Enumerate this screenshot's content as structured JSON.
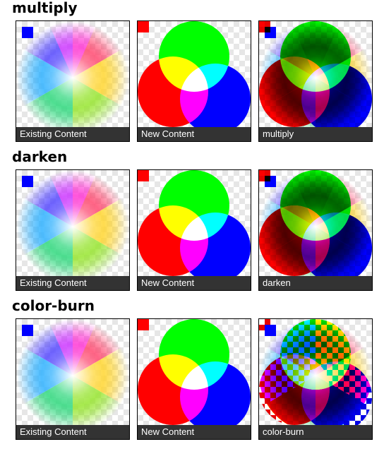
{
  "sections": [
    {
      "mode": "multiply",
      "title": "multiply",
      "captions": [
        "Existing Content",
        "New Content",
        "multiply"
      ]
    },
    {
      "mode": "darken",
      "title": "darken",
      "captions": [
        "Existing Content",
        "New Content",
        "darken"
      ]
    },
    {
      "mode": "color-burn",
      "title": "color-burn",
      "captions": [
        "Existing Content",
        "New Content",
        "color-burn"
      ]
    }
  ],
  "colors": {
    "caption_bg": "#333333",
    "existing_square": "#0000ff",
    "new_square": "#ff0000",
    "circle_red": "#ff0000",
    "circle_green": "#00ff00",
    "circle_blue": "#0000ff"
  }
}
